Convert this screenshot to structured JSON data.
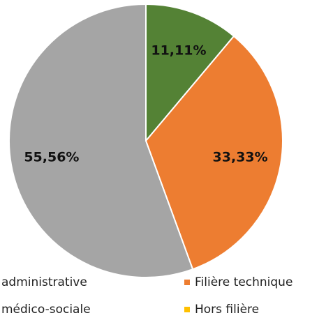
{
  "chart_data": {
    "type": "pie",
    "categories": [
      "administrative",
      "Filière technique",
      "médico-sociale",
      "Hors filière"
    ],
    "values": [
      11.11,
      33.33,
      55.56,
      0
    ],
    "value_labels": [
      "11,11%",
      "33,33%",
      "55,56%",
      null
    ],
    "colors": [
      "#548235",
      "#ed7d31",
      "#a5a5a5",
      "#ffc000"
    ]
  }
}
